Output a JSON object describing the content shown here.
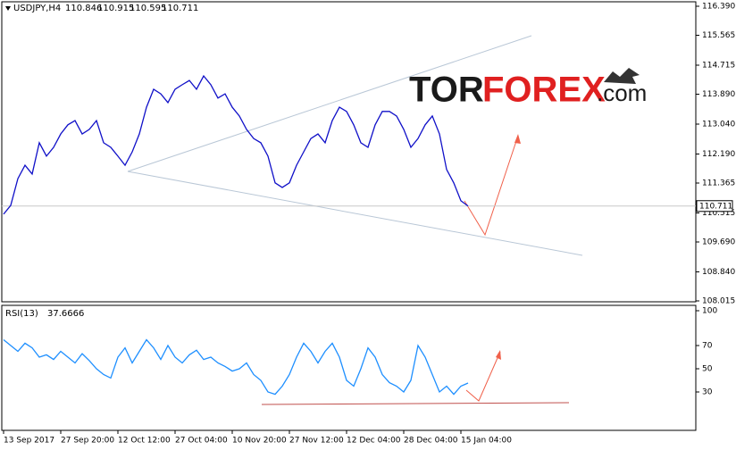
{
  "chart_data": [
    {
      "type": "line",
      "title": "USDJPY,H4",
      "ohlc": [
        110.846,
        110.915,
        110.595,
        110.711
      ],
      "color": "#1010c8",
      "categories": [
        "13 Sep 2017",
        null,
        null,
        null,
        null,
        null,
        null,
        null,
        "27 Sep 20:00",
        null,
        null,
        null,
        null,
        null,
        null,
        null,
        "12 Oct 12:00",
        null,
        null,
        null,
        null,
        null,
        null,
        null,
        "27 Oct 04:00",
        null,
        null,
        null,
        null,
        null,
        null,
        null,
        "10 Nov 20:00",
        null,
        null,
        null,
        null,
        null,
        null,
        null,
        "27 Nov 12:00",
        null,
        null,
        null,
        null,
        null,
        null,
        null,
        "12 Dec 04:00",
        null,
        null,
        null,
        null,
        null,
        null,
        null,
        "28 Dec 04:00",
        null,
        null,
        null,
        null,
        null,
        null,
        null,
        "15 Jan 04:00",
        null
      ],
      "values": [
        110.48,
        110.73,
        111.49,
        111.87,
        111.62,
        112.51,
        112.13,
        112.38,
        112.76,
        113.02,
        113.14,
        112.76,
        112.89,
        113.14,
        112.51,
        112.38,
        112.13,
        111.87,
        112.25,
        112.76,
        113.52,
        114.03,
        113.9,
        113.65,
        114.03,
        114.16,
        114.28,
        114.03,
        114.41,
        114.16,
        113.78,
        113.9,
        113.52,
        113.27,
        112.89,
        112.63,
        112.51,
        112.13,
        111.37,
        111.24,
        111.37,
        111.87,
        112.25,
        112.63,
        112.76,
        112.51,
        113.14,
        113.52,
        113.4,
        113.02,
        112.51,
        112.38,
        113.02,
        113.4,
        113.4,
        113.27,
        112.89,
        112.38,
        112.63,
        113.02,
        113.27,
        112.76,
        111.75,
        111.37,
        110.86,
        110.711
      ],
      "ylim": [
        108.015,
        116.39
      ],
      "yticks": [
        108.015,
        {
          "value": 108.84,
          "label": "108.840"
        },
        {
          "value": 109.69,
          "label": "109.690"
        },
        110.515,
        111.365,
        {
          "value": 112.19,
          "label": "112.190"
        },
        {
          "value": 113.04,
          "label": "113.040"
        },
        {
          "value": 113.89,
          "label": "113.890"
        },
        114.715,
        115.565,
        {
          "value": 116.39,
          "label": "116.390"
        }
      ],
      "watermark": [
        "TOR",
        "FOREX",
        ".com"
      ]
    },
    {
      "type": "line",
      "title": "RSI(13)",
      "current": 37.6666,
      "color": "#1e8fff",
      "values": [
        75,
        70,
        65,
        72,
        68,
        60,
        62,
        58,
        65,
        60,
        55,
        63,
        57,
        50,
        45,
        42,
        60,
        68,
        55,
        65,
        75,
        68,
        58,
        70,
        60,
        55,
        62,
        66,
        58,
        60,
        55,
        52,
        48,
        50,
        55,
        45,
        40,
        30,
        28,
        35,
        45,
        60,
        72,
        65,
        55,
        65,
        72,
        60,
        40,
        35,
        50,
        68,
        60,
        45,
        38,
        35,
        30,
        40,
        70,
        60,
        45,
        30,
        35,
        28,
        35,
        37.6666
      ],
      "ylim": [
        0,
        100
      ],
      "yticks": [
        30,
        50,
        70,
        100
      ]
    }
  ]
}
